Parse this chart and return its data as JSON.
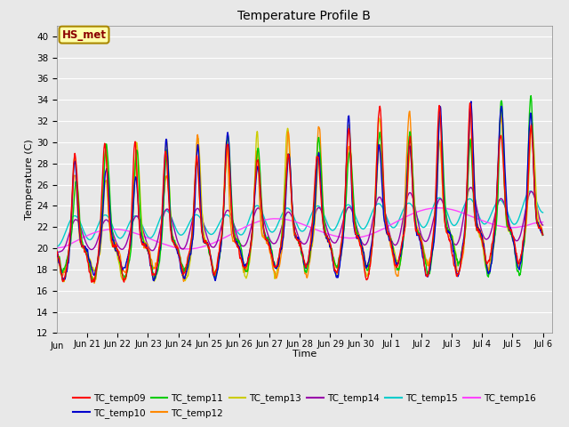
{
  "title": "Temperature Profile B",
  "xlabel": "Time",
  "ylabel": "Temperature (C)",
  "ylim": [
    12,
    41
  ],
  "yticks": [
    12,
    14,
    16,
    18,
    20,
    22,
    24,
    26,
    28,
    30,
    32,
    34,
    36,
    38,
    40
  ],
  "bg_color": "#e8e8e8",
  "grid_color": "#ffffff",
  "series_colors": {
    "TC_temp09": "#ff0000",
    "TC_temp10": "#0000cc",
    "TC_temp11": "#00cc00",
    "TC_temp12": "#ff8800",
    "TC_temp13": "#cccc00",
    "TC_temp14": "#9900aa",
    "TC_temp15": "#00cccc",
    "TC_temp16": "#ff44ff"
  },
  "annotation_text": "HS_met",
  "annotation_color": "#8b0000",
  "annotation_bg": "#ffffaa",
  "annotation_border": "#aa8800",
  "tick_labels": [
    "Jun 21",
    "Jun 22",
    "Jun 23",
    "Jun 24",
    "Jun 25",
    "Jun 26",
    "Jun 27",
    "Jun 28",
    "Jun 29",
    "Jun 30",
    "Jul 1",
    "Jul 2",
    "Jul 3",
    "Jul 4",
    "Jul 5",
    "Jul 6"
  ],
  "tick_start_label": "Jun"
}
